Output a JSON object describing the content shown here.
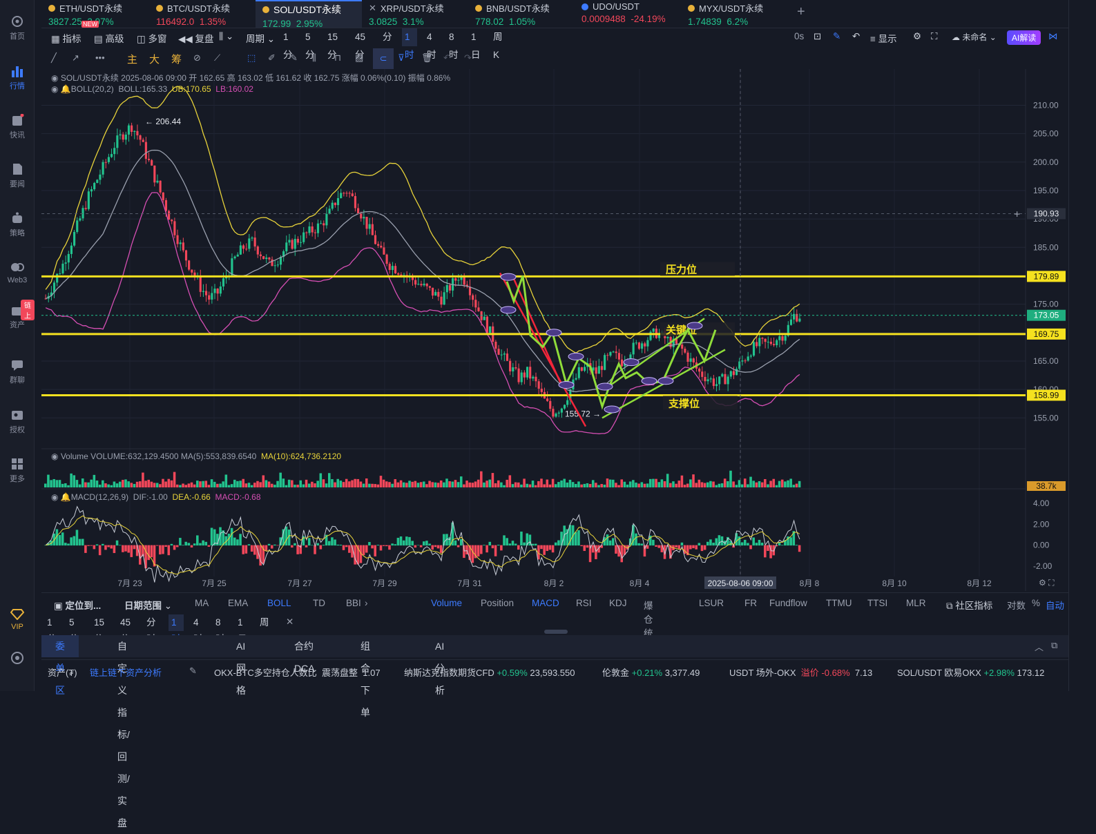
{
  "sidebar": {
    "items": [
      {
        "label": "首页",
        "icon": "home-icon"
      },
      {
        "label": "行情",
        "icon": "chart-icon"
      },
      {
        "label": "快讯",
        "icon": "news-icon"
      },
      {
        "label": "要闻",
        "icon": "document-icon"
      },
      {
        "label": "策略",
        "icon": "robot-icon"
      },
      {
        "label": "Web3",
        "icon": "web3-icon"
      },
      {
        "label": "资产",
        "icon": "wallet-icon",
        "badge": "链上"
      },
      {
        "label": "群聊",
        "icon": "chat-icon"
      },
      {
        "label": "授权",
        "icon": "key-icon"
      },
      {
        "label": "更多",
        "icon": "grid-icon"
      },
      {
        "label": "VIP",
        "icon": "diamond-icon"
      }
    ]
  },
  "tickers": [
    {
      "name": "ETH/USDT永续",
      "price": "3827.25",
      "change": "3.97%",
      "dir": "up",
      "badge": "NEW"
    },
    {
      "name": "BTC/USDT永续",
      "price": "116492.0",
      "change": "1.35%",
      "dir": "dn"
    },
    {
      "name": "SOL/USDT永续",
      "price": "172.99",
      "change": "2.95%",
      "dir": "up"
    },
    {
      "name": "XRP/USDT永续",
      "price": "3.0825",
      "change": "3.1%",
      "dir": "up"
    },
    {
      "name": "BNB/USDT永续",
      "price": "778.02",
      "change": "1.05%",
      "dir": "up"
    },
    {
      "name": "UDO/USDT",
      "price": "0.0009488",
      "change": "-24.19%",
      "dir": "dn"
    },
    {
      "name": "MYX/USDT永续",
      "price": "1.74839",
      "change": "6.2%",
      "dir": "up"
    }
  ],
  "toolbar": {
    "indicator": "指标",
    "advanced": "高级",
    "multi_window": "多窗",
    "replay": "复盘",
    "period": "周期",
    "intervals": [
      "1分",
      "5分",
      "15分",
      "45分",
      "分时",
      "1时",
      "4时",
      "8时",
      "1日",
      "周K"
    ],
    "active_interval": "1时",
    "countdown": "0s",
    "display": "显示",
    "unnamed": "未命名",
    "ai_read": "AI解读"
  },
  "draw_tools": [
    "主",
    "大",
    "筹"
  ],
  "legend": {
    "main": "SOL/USDT永续  2025-08-06 09:00  开 162.65  高 163.02  低 161.62  收 162.75  涨幅 0.06%(0.10)  振幅 0.86%",
    "boll_label": "BOLL(20,2)",
    "boll_val": "BOLL:165.33",
    "boll_ub": "UB:170.65",
    "boll_lb": "LB:160.02",
    "volume": "Volume  VOLUME:632,129.4500  MA(5):553,839.6540",
    "volume_ma10": "MA(10):624,736.2120",
    "macd_label": "MACD(12,26,9)",
    "macd_dif": "DIF:-1.00",
    "macd_dea": "DEA:-0.66",
    "macd_macd": "MACD:-0.68"
  },
  "chart_data": {
    "type": "candlestick",
    "symbol": "SOL/USDT永续",
    "y_ticks": [
      "210.00",
      "205.00",
      "200.00",
      "195.00",
      "190.00",
      "185.00",
      "180.00",
      "175.00",
      "170.00",
      "165.00",
      "160.00",
      "155.00"
    ],
    "ylim": [
      152,
      212
    ],
    "x_ticks": [
      "7月 23",
      "7月 25",
      "7月 27",
      "7月 29",
      "7月 31",
      "8月 2",
      "8月 4",
      "2025-08-06 09:00",
      "8月 8",
      "8月 10",
      "8月 12"
    ],
    "high_label": "206.44",
    "low_label": "155.72",
    "crosshair_price": "190.93",
    "current_price": "173.05",
    "levels": [
      {
        "price": "179.89",
        "label": "压力位",
        "value": 179.89
      },
      {
        "price": "169.75",
        "label": "关键位",
        "value": 169.75
      },
      {
        "price": "158.99",
        "label": "支撑位",
        "value": 158.99
      }
    ],
    "volume_box": "38.7k",
    "macd_ticks": [
      "4.00",
      "2.00",
      "0.00",
      "-2.00"
    ],
    "close_path": [
      176,
      179,
      182,
      186,
      190,
      194,
      197,
      200,
      203,
      205,
      206.4,
      204,
      200,
      196,
      192,
      188,
      184,
      181,
      178,
      176,
      177,
      180,
      183,
      185,
      186,
      184,
      182,
      183,
      185,
      186,
      187,
      188,
      189,
      191,
      194,
      195,
      193,
      190,
      187,
      184,
      182,
      181,
      180,
      179,
      178,
      177,
      176,
      178,
      180,
      179,
      175,
      172,
      169,
      166,
      164,
      162,
      163,
      161,
      158,
      156,
      157,
      160,
      163,
      164,
      163,
      165,
      166,
      165,
      167,
      168,
      169,
      170,
      169,
      168,
      167,
      165,
      163,
      162,
      161,
      162,
      163,
      165,
      167,
      168,
      168,
      169,
      170,
      173
    ]
  },
  "bottom_indicators": {
    "locate": "定位到...",
    "date_range": "日期范围",
    "main": [
      "MA",
      "EMA",
      "BOLL",
      "TD",
      "BBI"
    ],
    "main_active": "BOLL",
    "sub": [
      "Volume",
      "Position",
      "MACD",
      "RSI",
      "KDJ",
      "爆仓统计",
      "LSUR",
      "FR",
      "Fundflow",
      "TTMU",
      "TTSI",
      "MLR"
    ],
    "sub_active": [
      "Volume",
      "MACD"
    ],
    "community": "社区指标",
    "log": "对数",
    "percent": "%",
    "auto": "自动"
  },
  "bottom_intervals": [
    "1分",
    "5分",
    "15分",
    "45分",
    "分时",
    "1时",
    "4时",
    "8时",
    "1日",
    "周K"
  ],
  "bottom_tabs": [
    "委单区",
    "自定义指标/回测/实盘",
    "AI 网格",
    "合约DCA",
    "组合下单",
    "AI分析"
  ],
  "footer": {
    "assets": "资产(₮)",
    "analysis": "链上链下资产分析",
    "items": [
      {
        "label": "OKX-BTC多空持仓人数比",
        "tag": "震荡盘整",
        "value": "1.07"
      },
      {
        "label": "纳斯达克指数期货CFD",
        "change": "+0.59%",
        "value": "23,593.550"
      },
      {
        "label": "伦敦金",
        "change": "+0.21%",
        "value": "3,377.49"
      },
      {
        "label": "USDT 场外-OKX",
        "tag": "溢价",
        "change": "-0.68%",
        "value": "7.13"
      },
      {
        "label": "SOL/USDT 欧易OKX",
        "change": "+2.98%",
        "value": "173.12"
      }
    ]
  },
  "colors": {
    "up": "#22c38e",
    "down": "#f2475a",
    "accent": "#3d7bff",
    "level": "#f5e11f",
    "boll_upper": "#e8d33a",
    "boll_lower": "#d64fb4"
  }
}
